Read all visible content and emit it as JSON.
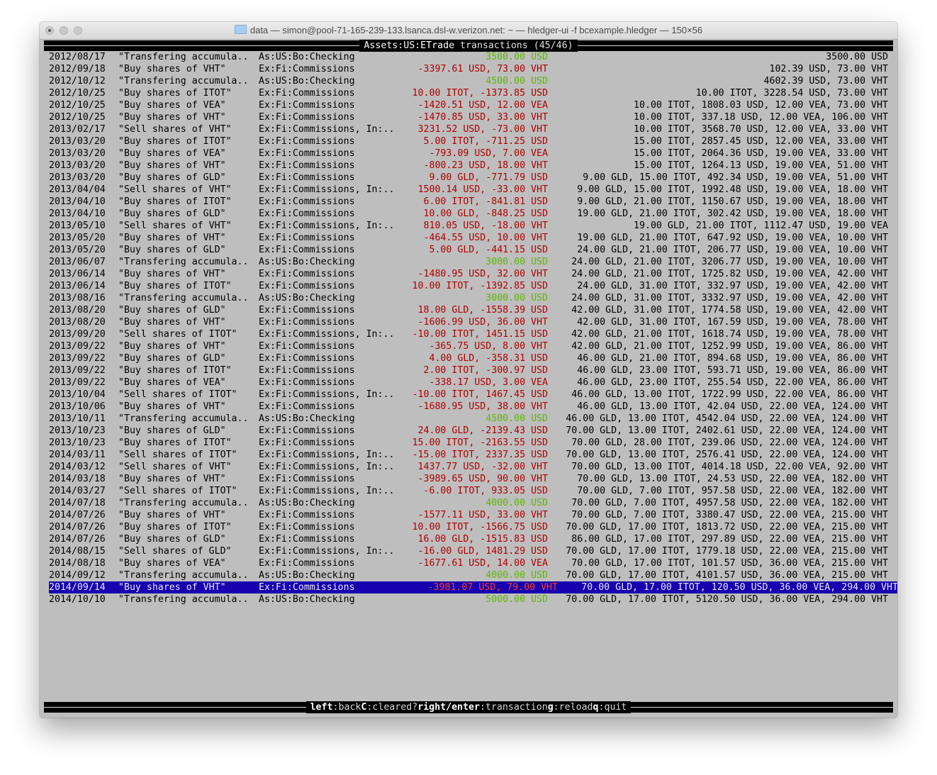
{
  "window": {
    "title": "data — simon@pool-71-165-239-133.lsanca.dsl-w.verizon.net: ~ — hledger-ui -f bcexample.hledger — 150×56"
  },
  "header": {
    "account": "Assets:US:ETrade",
    "suffix": " transactions (45/46)"
  },
  "colors": {
    "credit": "#5cb800",
    "debit": "#b00000",
    "selected_bg": "#1600b0",
    "selected_amount": "#ff3a2a",
    "background": "#bebebe"
  },
  "selected_index": 44,
  "rows": [
    {
      "date": "2012/08/17",
      "desc": "\"Transfering accumula..",
      "acct": "As:US:Bo:Checking",
      "amt": "3500.00 USD",
      "bal": "3500.00 USD"
    },
    {
      "date": "2012/09/18",
      "desc": "\"Buy shares of VHT\"",
      "acct": "Ex:Fi:Commissions",
      "amt": "-3397.61 USD, 73.00 VHT",
      "bal": "102.39 USD, 73.00 VHT"
    },
    {
      "date": "2012/10/12",
      "desc": "\"Transfering accumula..",
      "acct": "As:US:Bo:Checking",
      "amt": "4500.00 USD",
      "bal": "4602.39 USD, 73.00 VHT"
    },
    {
      "date": "2012/10/25",
      "desc": "\"Buy shares of ITOT\"",
      "acct": "Ex:Fi:Commissions",
      "amt": "10.00 ITOT, -1373.85 USD",
      "bal": "10.00 ITOT, 3228.54 USD, 73.00 VHT"
    },
    {
      "date": "2012/10/25",
      "desc": "\"Buy shares of VEA\"",
      "acct": "Ex:Fi:Commissions",
      "amt": "-1420.51 USD, 12.00 VEA",
      "bal": "10.00 ITOT, 1808.03 USD, 12.00 VEA, 73.00 VHT"
    },
    {
      "date": "2012/10/25",
      "desc": "\"Buy shares of VHT\"",
      "acct": "Ex:Fi:Commissions",
      "amt": "-1470.85 USD, 33.00 VHT",
      "bal": "10.00 ITOT, 337.18 USD, 12.00 VEA, 106.00 VHT"
    },
    {
      "date": "2013/02/17",
      "desc": "\"Sell shares of VHT\"",
      "acct": "Ex:Fi:Commissions, In:..",
      "amt": "3231.52 USD, -73.00 VHT",
      "bal": "10.00 ITOT, 3568.70 USD, 12.00 VEA, 33.00 VHT"
    },
    {
      "date": "2013/03/20",
      "desc": "\"Buy shares of ITOT\"",
      "acct": "Ex:Fi:Commissions",
      "amt": "5.00 ITOT, -711.25 USD",
      "bal": "15.00 ITOT, 2857.45 USD, 12.00 VEA, 33.00 VHT"
    },
    {
      "date": "2013/03/20",
      "desc": "\"Buy shares of VEA\"",
      "acct": "Ex:Fi:Commissions",
      "amt": "-793.09 USD, 7.00 VEA",
      "bal": "15.00 ITOT, 2064.36 USD, 19.00 VEA, 33.00 VHT"
    },
    {
      "date": "2013/03/20",
      "desc": "\"Buy shares of VHT\"",
      "acct": "Ex:Fi:Commissions",
      "amt": "-800.23 USD, 18.00 VHT",
      "bal": "15.00 ITOT, 1264.13 USD, 19.00 VEA, 51.00 VHT"
    },
    {
      "date": "2013/03/20",
      "desc": "\"Buy shares of GLD\"",
      "acct": "Ex:Fi:Commissions",
      "amt": "9.00 GLD, -771.79 USD",
      "bal": "9.00 GLD, 15.00 ITOT, 492.34 USD, 19.00 VEA, 51.00 VHT"
    },
    {
      "date": "2013/04/04",
      "desc": "\"Sell shares of VHT\"",
      "acct": "Ex:Fi:Commissions, In:..",
      "amt": "1500.14 USD, -33.00 VHT",
      "bal": "9.00 GLD, 15.00 ITOT, 1992.48 USD, 19.00 VEA, 18.00 VHT"
    },
    {
      "date": "2013/04/10",
      "desc": "\"Buy shares of ITOT\"",
      "acct": "Ex:Fi:Commissions",
      "amt": "6.00 ITOT, -841.81 USD",
      "bal": "9.00 GLD, 21.00 ITOT, 1150.67 USD, 19.00 VEA, 18.00 VHT"
    },
    {
      "date": "2013/04/10",
      "desc": "\"Buy shares of GLD\"",
      "acct": "Ex:Fi:Commissions",
      "amt": "10.00 GLD, -848.25 USD",
      "bal": "19.00 GLD, 21.00 ITOT, 302.42 USD, 19.00 VEA, 18.00 VHT"
    },
    {
      "date": "2013/05/10",
      "desc": "\"Sell shares of VHT\"",
      "acct": "Ex:Fi:Commissions, In:..",
      "amt": "810.05 USD, -18.00 VHT",
      "bal": "19.00 GLD, 21.00 ITOT, 1112.47 USD, 19.00 VEA"
    },
    {
      "date": "2013/05/20",
      "desc": "\"Buy shares of VHT\"",
      "acct": "Ex:Fi:Commissions",
      "amt": "-464.55 USD, 10.00 VHT",
      "bal": "19.00 GLD, 21.00 ITOT, 647.92 USD, 19.00 VEA, 10.00 VHT"
    },
    {
      "date": "2013/05/20",
      "desc": "\"Buy shares of GLD\"",
      "acct": "Ex:Fi:Commissions",
      "amt": "5.00 GLD, -441.15 USD",
      "bal": "24.00 GLD, 21.00 ITOT, 206.77 USD, 19.00 VEA, 10.00 VHT"
    },
    {
      "date": "2013/06/07",
      "desc": "\"Transfering accumula..",
      "acct": "As:US:Bo:Checking",
      "amt": "3000.00 USD",
      "bal": "24.00 GLD, 21.00 ITOT, 3206.77 USD, 19.00 VEA, 10.00 VHT"
    },
    {
      "date": "2013/06/14",
      "desc": "\"Buy shares of VHT\"",
      "acct": "Ex:Fi:Commissions",
      "amt": "-1480.95 USD, 32.00 VHT",
      "bal": "24.00 GLD, 21.00 ITOT, 1725.82 USD, 19.00 VEA, 42.00 VHT"
    },
    {
      "date": "2013/06/14",
      "desc": "\"Buy shares of ITOT\"",
      "acct": "Ex:Fi:Commissions",
      "amt": "10.00 ITOT, -1392.85 USD",
      "bal": "24.00 GLD, 31.00 ITOT, 332.97 USD, 19.00 VEA, 42.00 VHT"
    },
    {
      "date": "2013/08/16",
      "desc": "\"Transfering accumula..",
      "acct": "As:US:Bo:Checking",
      "amt": "3000.00 USD",
      "bal": "24.00 GLD, 31.00 ITOT, 3332.97 USD, 19.00 VEA, 42.00 VHT"
    },
    {
      "date": "2013/08/20",
      "desc": "\"Buy shares of GLD\"",
      "acct": "Ex:Fi:Commissions",
      "amt": "18.00 GLD, -1558.39 USD",
      "bal": "42.00 GLD, 31.00 ITOT, 1774.58 USD, 19.00 VEA, 42.00 VHT"
    },
    {
      "date": "2013/08/20",
      "desc": "\"Buy shares of VHT\"",
      "acct": "Ex:Fi:Commissions",
      "amt": "-1606.99 USD, 36.00 VHT",
      "bal": "42.00 GLD, 31.00 ITOT, 167.59 USD, 19.00 VEA, 78.00 VHT"
    },
    {
      "date": "2013/09/20",
      "desc": "\"Sell shares of ITOT\"",
      "acct": "Ex:Fi:Commissions, In:..",
      "amt": "-10.00 ITOT, 1451.15 USD",
      "bal": "42.00 GLD, 21.00 ITOT, 1618.74 USD, 19.00 VEA, 78.00 VHT"
    },
    {
      "date": "2013/09/22",
      "desc": "\"Buy shares of VHT\"",
      "acct": "Ex:Fi:Commissions",
      "amt": "-365.75 USD, 8.00 VHT",
      "bal": "42.00 GLD, 21.00 ITOT, 1252.99 USD, 19.00 VEA, 86.00 VHT"
    },
    {
      "date": "2013/09/22",
      "desc": "\"Buy shares of GLD\"",
      "acct": "Ex:Fi:Commissions",
      "amt": "4.00 GLD, -358.31 USD",
      "bal": "46.00 GLD, 21.00 ITOT, 894.68 USD, 19.00 VEA, 86.00 VHT"
    },
    {
      "date": "2013/09/22",
      "desc": "\"Buy shares of ITOT\"",
      "acct": "Ex:Fi:Commissions",
      "amt": "2.00 ITOT, -300.97 USD",
      "bal": "46.00 GLD, 23.00 ITOT, 593.71 USD, 19.00 VEA, 86.00 VHT"
    },
    {
      "date": "2013/09/22",
      "desc": "\"Buy shares of VEA\"",
      "acct": "Ex:Fi:Commissions",
      "amt": "-338.17 USD, 3.00 VEA",
      "bal": "46.00 GLD, 23.00 ITOT, 255.54 USD, 22.00 VEA, 86.00 VHT"
    },
    {
      "date": "2013/10/04",
      "desc": "\"Sell shares of ITOT\"",
      "acct": "Ex:Fi:Commissions, In:..",
      "amt": "-10.00 ITOT, 1467.45 USD",
      "bal": "46.00 GLD, 13.00 ITOT, 1722.99 USD, 22.00 VEA, 86.00 VHT"
    },
    {
      "date": "2013/10/06",
      "desc": "\"Buy shares of VHT\"",
      "acct": "Ex:Fi:Commissions",
      "amt": "-1680.95 USD, 38.00 VHT",
      "bal": "46.00 GLD, 13.00 ITOT, 42.04 USD, 22.00 VEA, 124.00 VHT"
    },
    {
      "date": "2013/10/11",
      "desc": "\"Transfering accumula..",
      "acct": "As:US:Bo:Checking",
      "amt": "4500.00 USD",
      "bal": "46.00 GLD, 13.00 ITOT, 4542.04 USD, 22.00 VEA, 124.00 VHT"
    },
    {
      "date": "2013/10/23",
      "desc": "\"Buy shares of GLD\"",
      "acct": "Ex:Fi:Commissions",
      "amt": "24.00 GLD, -2139.43 USD",
      "bal": "70.00 GLD, 13.00 ITOT, 2402.61 USD, 22.00 VEA, 124.00 VHT"
    },
    {
      "date": "2013/10/23",
      "desc": "\"Buy shares of ITOT\"",
      "acct": "Ex:Fi:Commissions",
      "amt": "15.00 ITOT, -2163.55 USD",
      "bal": "70.00 GLD, 28.00 ITOT, 239.06 USD, 22.00 VEA, 124.00 VHT"
    },
    {
      "date": "2014/03/11",
      "desc": "\"Sell shares of ITOT\"",
      "acct": "Ex:Fi:Commissions, In:..",
      "amt": "-15.00 ITOT, 2337.35 USD",
      "bal": "70.00 GLD, 13.00 ITOT, 2576.41 USD, 22.00 VEA, 124.00 VHT"
    },
    {
      "date": "2014/03/12",
      "desc": "\"Sell shares of VHT\"",
      "acct": "Ex:Fi:Commissions, In:..",
      "amt": "1437.77 USD, -32.00 VHT",
      "bal": "70.00 GLD, 13.00 ITOT, 4014.18 USD, 22.00 VEA, 92.00 VHT"
    },
    {
      "date": "2014/03/18",
      "desc": "\"Buy shares of VHT\"",
      "acct": "Ex:Fi:Commissions",
      "amt": "-3989.65 USD, 90.00 VHT",
      "bal": "70.00 GLD, 13.00 ITOT, 24.53 USD, 22.00 VEA, 182.00 VHT"
    },
    {
      "date": "2014/03/27",
      "desc": "\"Sell shares of ITOT\"",
      "acct": "Ex:Fi:Commissions, In:..",
      "amt": "-6.00 ITOT, 933.05 USD",
      "bal": "70.00 GLD, 7.00 ITOT, 957.58 USD, 22.00 VEA, 182.00 VHT"
    },
    {
      "date": "2014/07/18",
      "desc": "\"Transfering accumula..",
      "acct": "As:US:Bo:Checking",
      "amt": "4000.00 USD",
      "bal": "70.00 GLD, 7.00 ITOT, 4957.58 USD, 22.00 VEA, 182.00 VHT"
    },
    {
      "date": "2014/07/26",
      "desc": "\"Buy shares of VHT\"",
      "acct": "Ex:Fi:Commissions",
      "amt": "-1577.11 USD, 33.00 VHT",
      "bal": "70.00 GLD, 7.00 ITOT, 3380.47 USD, 22.00 VEA, 215.00 VHT"
    },
    {
      "date": "2014/07/26",
      "desc": "\"Buy shares of ITOT\"",
      "acct": "Ex:Fi:Commissions",
      "amt": "10.00 ITOT, -1566.75 USD",
      "bal": "70.00 GLD, 17.00 ITOT, 1813.72 USD, 22.00 VEA, 215.00 VHT"
    },
    {
      "date": "2014/07/26",
      "desc": "\"Buy shares of GLD\"",
      "acct": "Ex:Fi:Commissions",
      "amt": "16.00 GLD, -1515.83 USD",
      "bal": "86.00 GLD, 17.00 ITOT, 297.89 USD, 22.00 VEA, 215.00 VHT"
    },
    {
      "date": "2014/08/15",
      "desc": "\"Sell shares of GLD\"",
      "acct": "Ex:Fi:Commissions, In:..",
      "amt": "-16.00 GLD, 1481.29 USD",
      "bal": "70.00 GLD, 17.00 ITOT, 1779.18 USD, 22.00 VEA, 215.00 VHT"
    },
    {
      "date": "2014/08/18",
      "desc": "\"Buy shares of VEA\"",
      "acct": "Ex:Fi:Commissions",
      "amt": "-1677.61 USD, 14.00 VEA",
      "bal": "70.00 GLD, 17.00 ITOT, 101.57 USD, 36.00 VEA, 215.00 VHT"
    },
    {
      "date": "2014/09/12",
      "desc": "\"Transfering accumula..",
      "acct": "As:US:Bo:Checking",
      "amt": "4000.00 USD",
      "bal": "70.00 GLD, 17.00 ITOT, 4101.57 USD, 36.00 VEA, 215.00 VHT"
    },
    {
      "date": "2014/09/14",
      "desc": "\"Buy shares of VHT\"",
      "acct": "Ex:Fi:Commissions",
      "amt": "-3981.07 USD, 79.00 VHT",
      "bal": "70.00 GLD, 17.00 ITOT, 120.50 USD, 36.00 VEA, 294.00 VHT"
    },
    {
      "date": "2014/10/10",
      "desc": "\"Transfering accumula..",
      "acct": "As:US:Bo:Checking",
      "amt": "5000.00 USD",
      "bal": "70.00 GLD, 17.00 ITOT, 5120.50 USD, 36.00 VEA, 294.00 VHT"
    }
  ],
  "footer": {
    "keys": [
      {
        "key": "left",
        "action": "back"
      },
      {
        "key": "C",
        "action": "cleared?"
      },
      {
        "key": "right/enter",
        "action": "transaction"
      },
      {
        "key": "g",
        "action": "reload"
      },
      {
        "key": "q",
        "action": "quit"
      }
    ]
  }
}
